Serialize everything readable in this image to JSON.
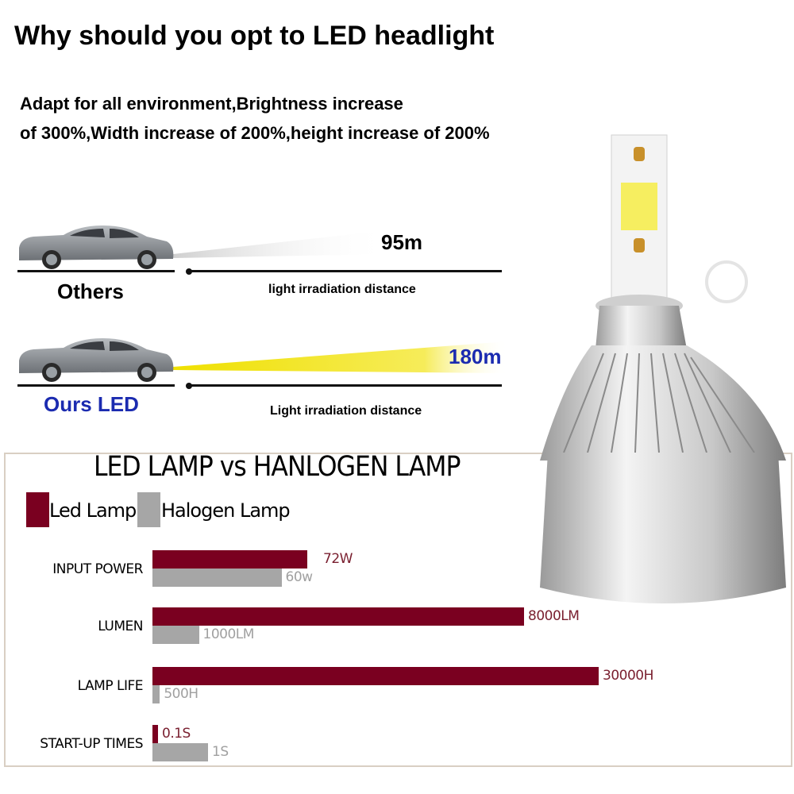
{
  "header": {
    "title": "Why should you opt to LED headlight",
    "subtitle_line1": "Adapt for all environment,Brightness increase",
    "subtitle_line2": "of 300%,Width increase of 200%,height increase of 200%"
  },
  "comparison": {
    "others": {
      "label": "Others",
      "distance": "95m",
      "caption": "light irradiation distance",
      "beam_color": "#d9d9d9"
    },
    "ours": {
      "label": "Ours LED",
      "distance": "180m",
      "caption": "Light irradiation distance",
      "beam_color": "#f3e318",
      "label_color": "#1b2bb0"
    }
  },
  "chart_data": {
    "type": "bar",
    "orientation": "horizontal",
    "title": "LED LAMP vs HANLOGEN LAMP",
    "categories": [
      "INPUT POWER",
      "LUMEN",
      "LAMP LIFE",
      "START-UP TIMES"
    ],
    "series": [
      {
        "name": "Led Lamp",
        "color": "#7a0020",
        "values": [
          72,
          8000,
          30000,
          0.1
        ],
        "labels": [
          "72W",
          "8000LM",
          "30000H",
          "0.1S"
        ]
      },
      {
        "name": "Halogen Lamp",
        "color": "#a6a6a6",
        "values": [
          60,
          1000,
          500,
          1
        ],
        "labels": [
          "60w",
          "1000LM",
          "500H",
          "1S"
        ]
      }
    ],
    "legend": "top-left",
    "grid": false
  },
  "product": {
    "image": "led-headlight-bulb",
    "brand_mark": "®"
  }
}
